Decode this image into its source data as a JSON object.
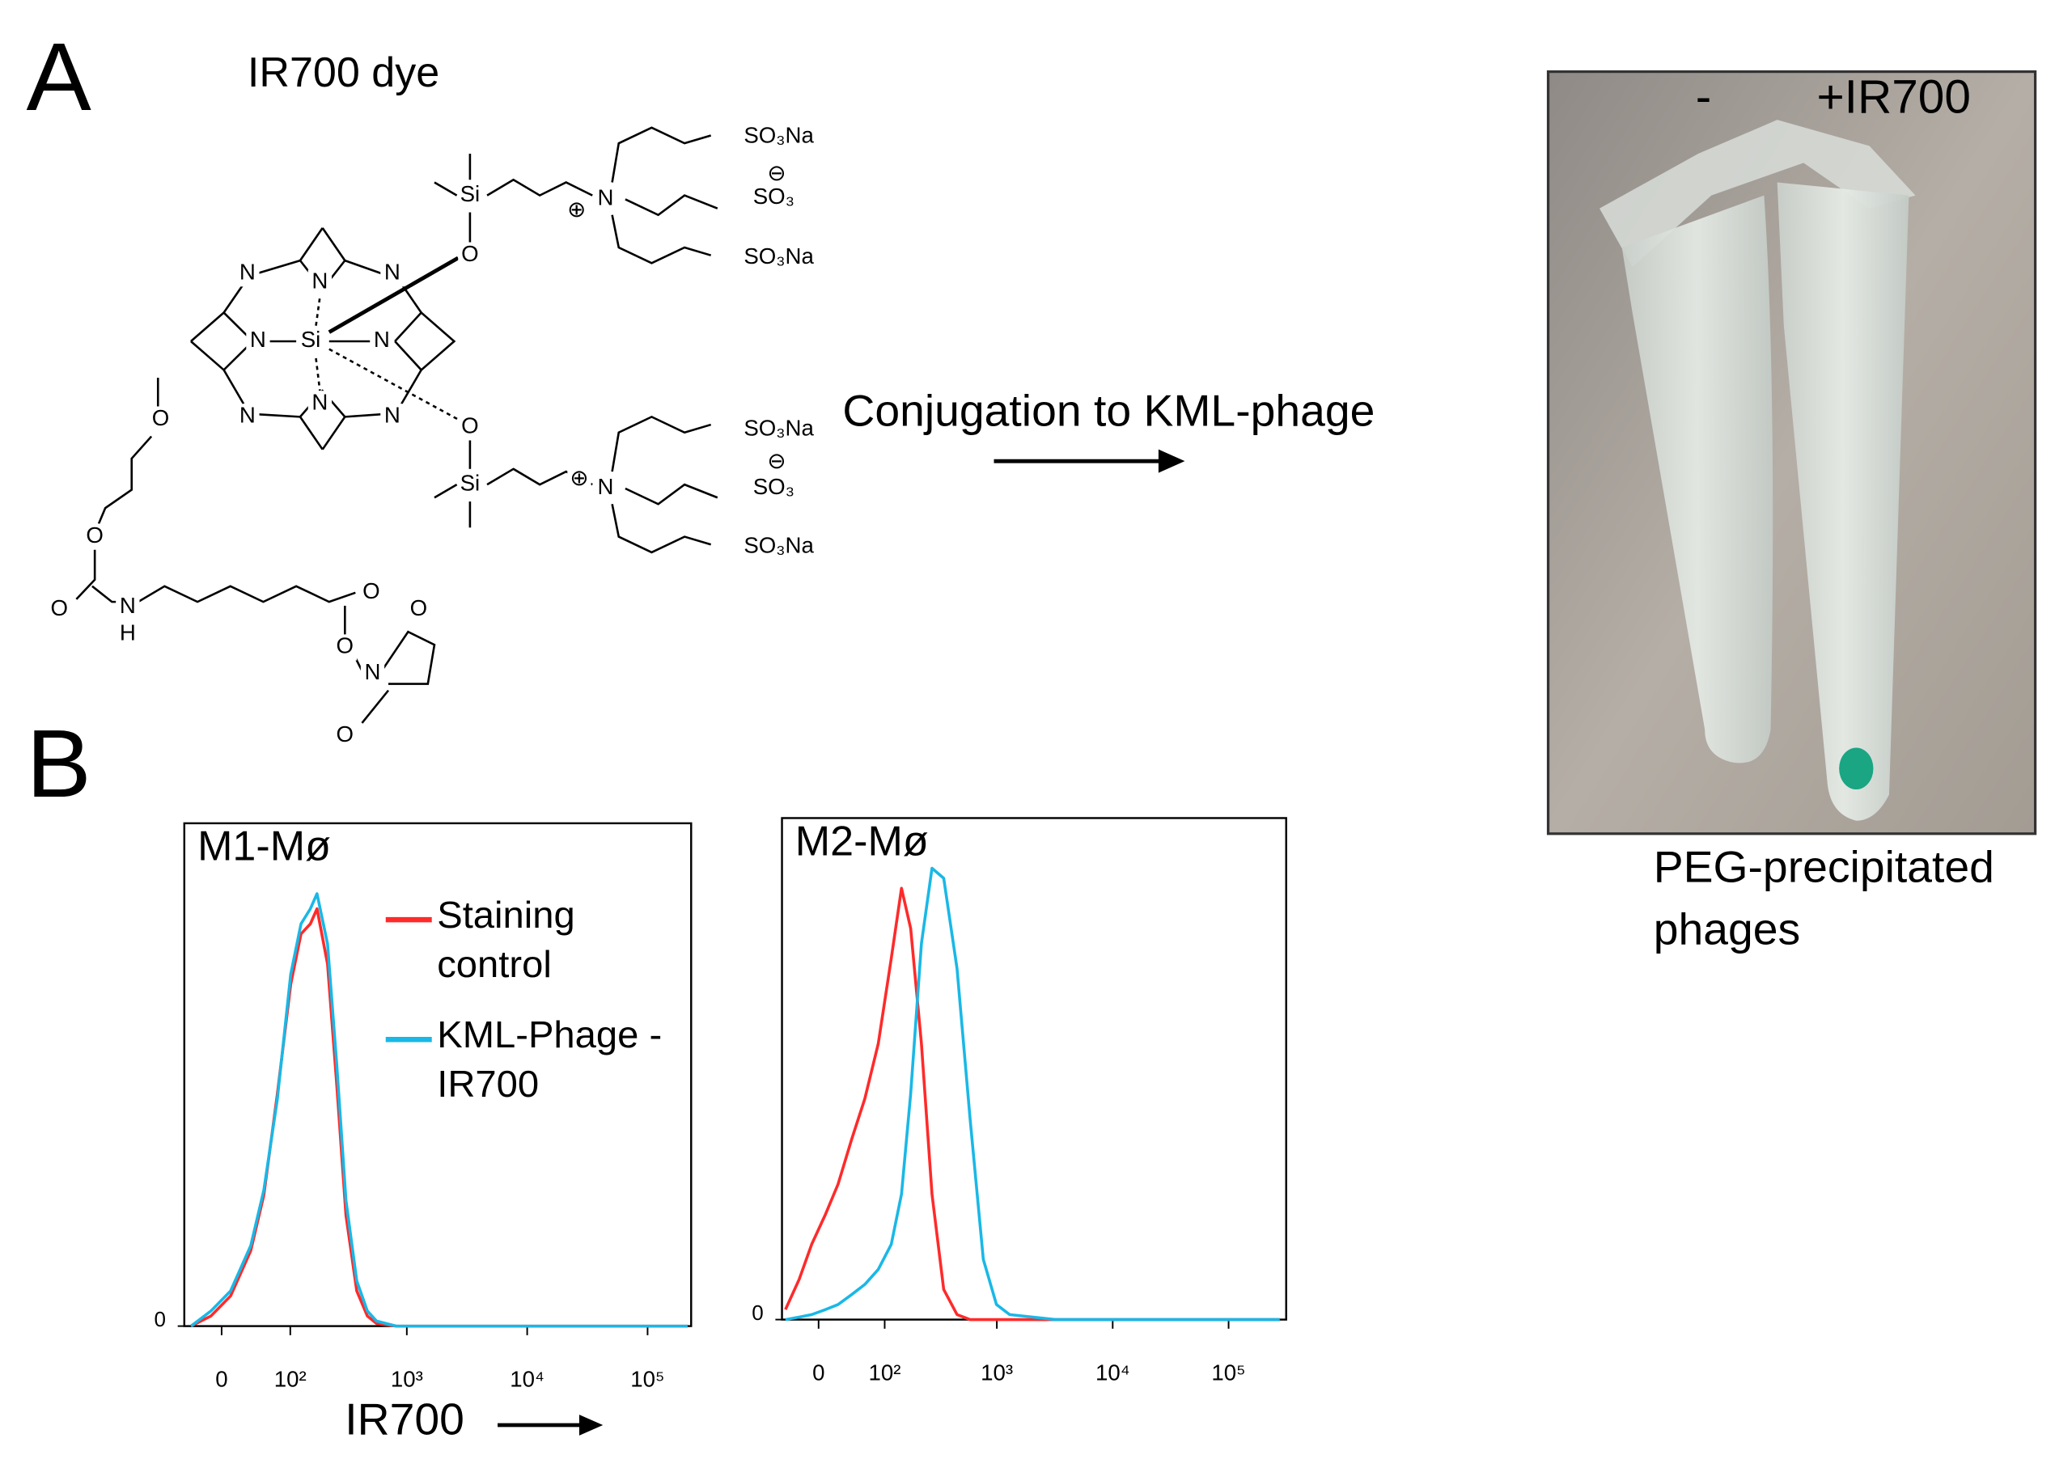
{
  "panel_a": {
    "label": "A",
    "dye_title": "IR700 dye",
    "arrow_label": "Conjugation to KML-phage",
    "tube_labels": [
      "-",
      "+IR700"
    ],
    "photo_caption": [
      "PEG-precipitated",
      "phages"
    ]
  },
  "structure": {
    "atoms": [
      "N",
      "N",
      "N",
      "N",
      "Si",
      "N",
      "N",
      "N",
      "N",
      "O",
      "O",
      "Si",
      "Si",
      "N",
      "⊕",
      "N",
      "⊕",
      "SO₃Na",
      "SO₃",
      "⊖",
      "SO₃Na",
      "SO₃Na",
      "SO₃",
      "⊖",
      "SO₃Na",
      "O",
      "O",
      "O",
      "N",
      "H",
      "O",
      "O",
      "N",
      "O",
      "O"
    ]
  },
  "panel_b": {
    "label": "B",
    "x_axis_label": "IR700"
  },
  "chart_data": [
    {
      "type": "line",
      "title": "M1-Mø",
      "x": [
        -36,
        -12,
        10,
        34,
        52,
        74,
        101,
        126,
        153,
        175,
        216,
        259,
        310,
        382,
        469,
        560,
        818,
        10300,
        215000
      ],
      "series": [
        {
          "name": "Staining control",
          "color": "#ff2a2a",
          "values": [
            0,
            2,
            6,
            15,
            26,
            46,
            68,
            78,
            80,
            83,
            72,
            48,
            22,
            7,
            2,
            0.5,
            0,
            0,
            0
          ]
        },
        {
          "name": "KML-Phage -IR700",
          "color": "#19b8e6",
          "values": [
            0,
            3,
            7,
            16,
            27,
            45,
            70,
            80,
            83,
            86,
            76,
            52,
            25,
            9,
            3,
            1,
            0,
            0,
            0
          ]
        }
      ],
      "xscale": "asinh",
      "xlim": [
        -45,
        230000
      ],
      "xticks": [
        0,
        {
          "value": 100,
          "label": "10²"
        },
        {
          "value": 1000,
          "label": "10³"
        },
        {
          "value": 10000,
          "label": "10⁴"
        },
        {
          "value": 100000,
          "label": "10⁵"
        }
      ],
      "ylim": [
        0,
        100
      ],
      "yticks": [
        0
      ],
      "legend": "upper right"
    },
    {
      "type": "line",
      "title": "M2-Mø",
      "x": [
        -41,
        -23,
        -8,
        8,
        23,
        41,
        61,
        86,
        116,
        145,
        176,
        220,
        273,
        346,
        452,
        587,
        764,
        993,
        1290,
        3220,
        276000
      ],
      "series": [
        {
          "color": "#ff2a2a",
          "values": [
            2,
            8,
            15,
            21,
            27,
            36,
            44,
            55,
            72,
            86,
            78,
            55,
            25,
            6,
            1,
            0,
            0,
            0,
            0,
            0,
            0
          ]
        },
        {
          "color": "#19b8e6",
          "values": [
            0,
            0.5,
            1,
            2,
            3,
            5,
            7,
            10,
            15,
            25,
            45,
            75,
            90,
            88,
            70,
            40,
            12,
            3,
            1,
            0,
            0
          ]
        }
      ],
      "xscale": "asinh",
      "xlim": [
        -46,
        314000
      ],
      "xticks": [
        0,
        {
          "value": 100,
          "label": "10²"
        },
        {
          "value": 1000,
          "label": "10³"
        },
        {
          "value": 10000,
          "label": "10⁴"
        },
        {
          "value": 100000,
          "label": "10⁵"
        }
      ],
      "ylim": [
        0,
        100
      ],
      "yticks": [
        0
      ]
    }
  ]
}
